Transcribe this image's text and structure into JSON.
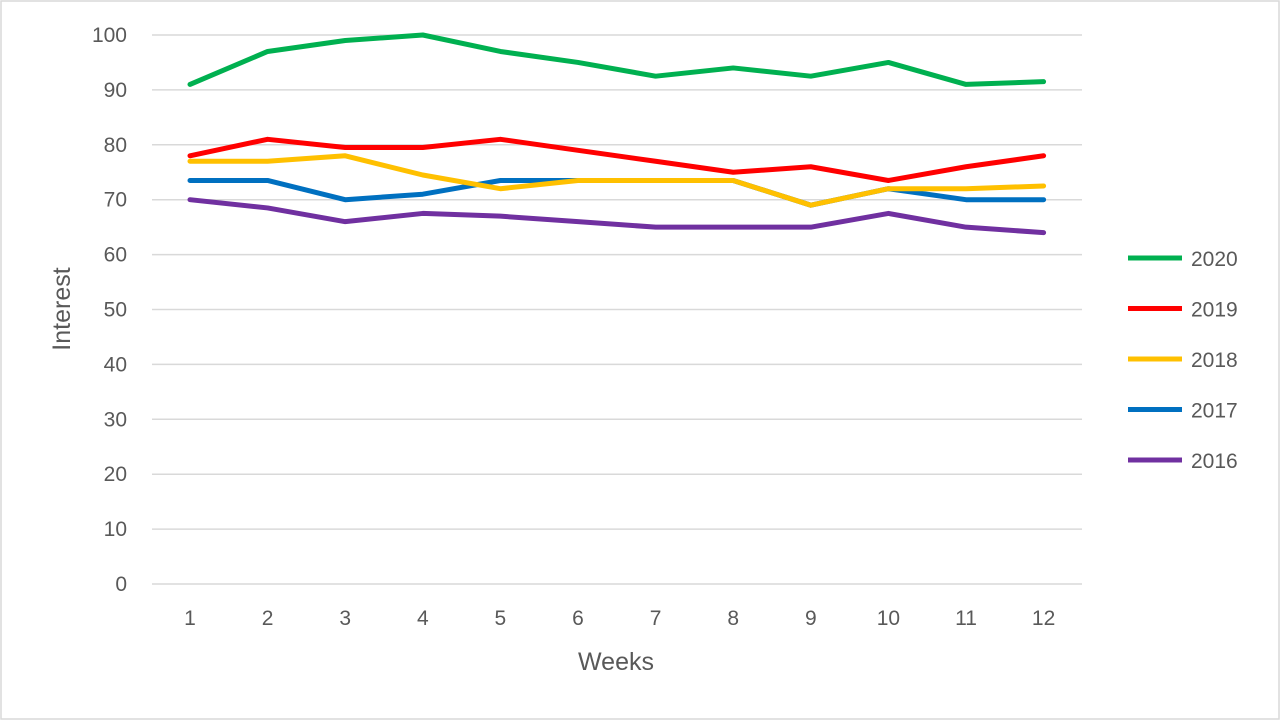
{
  "chart_data": {
    "type": "line",
    "title": "",
    "xlabel": "Weeks",
    "ylabel": "Interest",
    "x": [
      "1",
      "2",
      "3",
      "4",
      "5",
      "6",
      "7",
      "8",
      "9",
      "10",
      "11",
      "12"
    ],
    "y_ticks": [
      "0",
      "10",
      "20",
      "30",
      "40",
      "50",
      "60",
      "70",
      "80",
      "90",
      "100"
    ],
    "ylim": [
      0,
      100
    ],
    "grid": true,
    "legend_position": "right",
    "series": [
      {
        "name": "2020",
        "color": "#00b050",
        "values": [
          91,
          97,
          99,
          100,
          97,
          95,
          92.5,
          94,
          92.5,
          95,
          91,
          91.5
        ]
      },
      {
        "name": "2019",
        "color": "#ff0000",
        "values": [
          78,
          81,
          79.5,
          79.5,
          81,
          79,
          77,
          75,
          76,
          73.5,
          76,
          78
        ]
      },
      {
        "name": "2018",
        "color": "#ffc000",
        "values": [
          77,
          77,
          78,
          74.5,
          72,
          73.5,
          73.5,
          73.5,
          69,
          72,
          72,
          72.5
        ]
      },
      {
        "name": "2017",
        "color": "#0070c0",
        "values": [
          73.5,
          73.5,
          70,
          71,
          73.5,
          73.5,
          73.5,
          73.5,
          69,
          72,
          70,
          70
        ]
      },
      {
        "name": "2016",
        "color": "#7030a0",
        "values": [
          70,
          68.5,
          66,
          67.5,
          67,
          66,
          65,
          65,
          65,
          67.5,
          65,
          64
        ]
      }
    ]
  }
}
